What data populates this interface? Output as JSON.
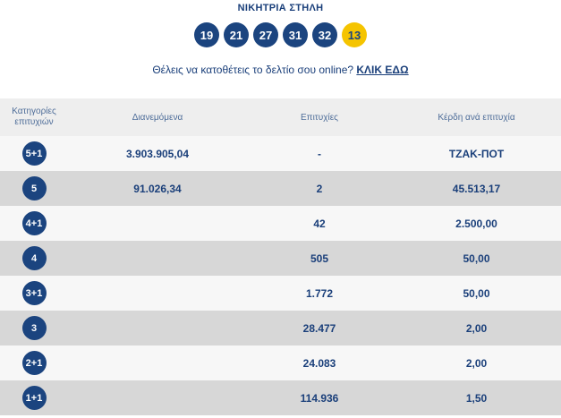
{
  "header": {
    "title": "ΝΙΚΗΤΡΙΑ ΣΤΗΛΗ"
  },
  "winning_numbers": [
    "19",
    "21",
    "27",
    "31",
    "32"
  ],
  "joker": "13",
  "colors": {
    "ball": "#1b447f",
    "joker": "#f5c400",
    "row_light": "#f7f7f7",
    "row_dark": "#d7d7d7"
  },
  "promo": {
    "text": "Θέλεις να κατοθέτεις το δελτίο σου online? ",
    "link": "ΚΛΙΚ ΕΔΩ"
  },
  "table": {
    "headers": [
      "Κατηγορίες επιτυχιών",
      "Διανεμόμενα",
      "Επιτυχίες",
      "Κέρδη ανά επιτυχία"
    ],
    "rows": [
      {
        "category": "5+1",
        "distributed": "3.903.905,04",
        "winners": "-",
        "prize": "ΤΖΑΚ-ΠΟΤ"
      },
      {
        "category": "5",
        "distributed": "91.026,34",
        "winners": "2",
        "prize": "45.513,17"
      },
      {
        "category": "4+1",
        "distributed": "",
        "winners": "42",
        "prize": "2.500,00"
      },
      {
        "category": "4",
        "distributed": "",
        "winners": "505",
        "prize": "50,00"
      },
      {
        "category": "3+1",
        "distributed": "",
        "winners": "1.772",
        "prize": "50,00"
      },
      {
        "category": "3",
        "distributed": "",
        "winners": "28.477",
        "prize": "2,00"
      },
      {
        "category": "2+1",
        "distributed": "",
        "winners": "24.083",
        "prize": "2,00"
      },
      {
        "category": "1+1",
        "distributed": "",
        "winners": "114.936",
        "prize": "1,50"
      }
    ]
  }
}
